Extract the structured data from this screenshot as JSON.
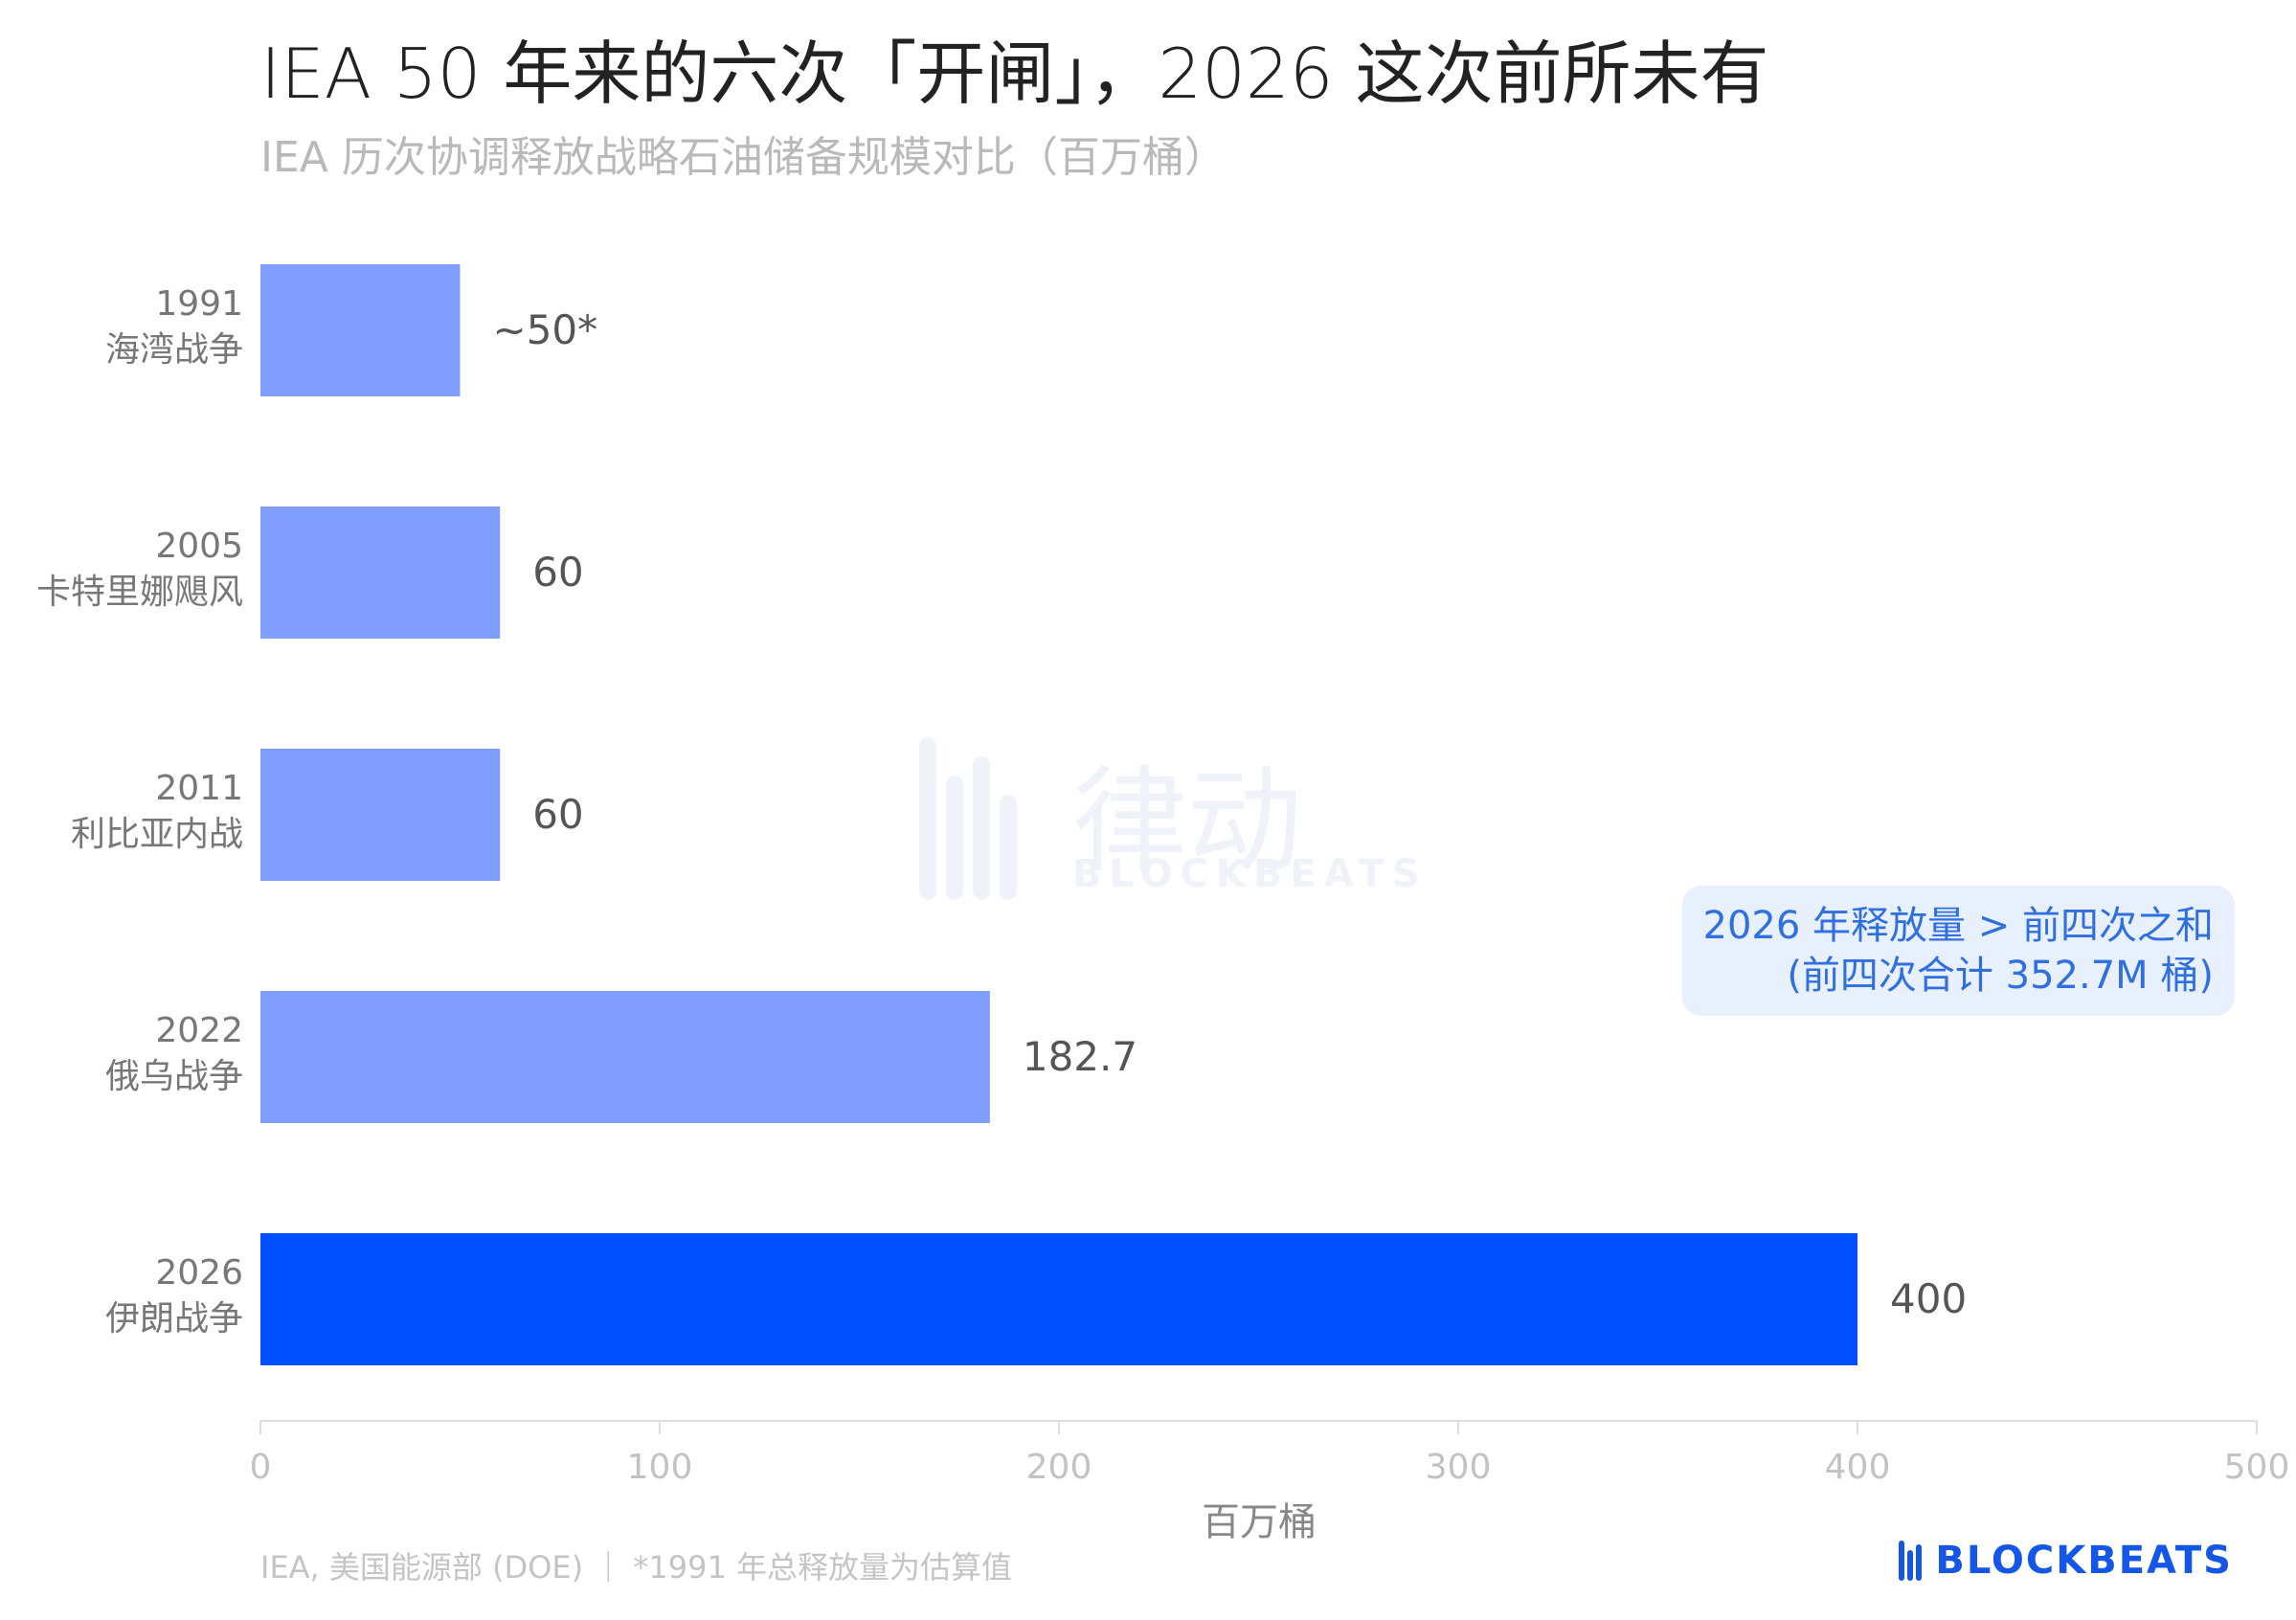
{
  "header": {
    "title": "IEA 50 年来的六次「开闸」，2026 这次前所未有",
    "subtitle": "IEA 历次协调释放战略石油储备规模对比（百万桶）"
  },
  "chart_data": {
    "type": "bar",
    "orientation": "horizontal",
    "categories": [
      {
        "year": "1991",
        "event": "海湾战争"
      },
      {
        "year": "2005",
        "event": "卡特里娜飓风"
      },
      {
        "year": "2011",
        "event": "利比亚内战"
      },
      {
        "year": "2022",
        "event": "俄乌战争"
      },
      {
        "year": "2026",
        "event": "伊朗战争"
      }
    ],
    "values": [
      50,
      60,
      60,
      182.7,
      400
    ],
    "value_labels": [
      "~50*",
      "60",
      "60",
      "182.7",
      "400"
    ],
    "highlight_index": 4,
    "bar_color": "#7f9cff",
    "highlight_color": "#0050ff",
    "xlabel": "百万桶",
    "xlim": [
      0,
      500
    ],
    "xticks": [
      "0",
      "100",
      "200",
      "300",
      "400",
      "500"
    ],
    "grid": false
  },
  "annotation": {
    "line1": "2026 年释放量 > 前四次之和",
    "line2": "(前四次合计 352.7M 桶)"
  },
  "watermark": {
    "cn": "律动",
    "en": "BLOCKBEATS"
  },
  "footer": {
    "source": "IEA, 美国能源部 (DOE) ｜ *1991 年总释放量为估算值"
  },
  "brand": {
    "name": "BLOCKBEATS",
    "color": "#1456e6"
  }
}
